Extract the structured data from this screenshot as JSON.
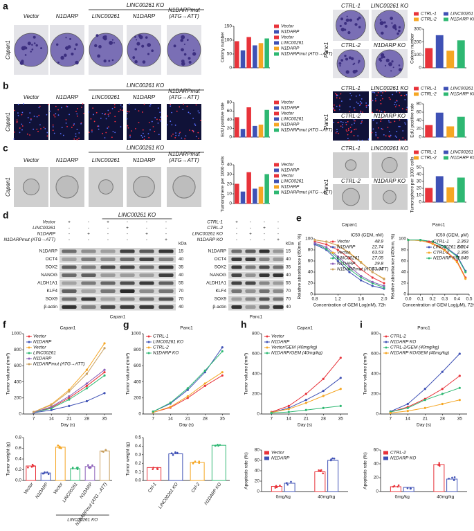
{
  "panel_letters": [
    "a",
    "b",
    "c",
    "d",
    "e",
    "f",
    "g",
    "h",
    "i"
  ],
  "rows": [
    {
      "cell_line": "Capan1",
      "group_label": "LINC00261 KO",
      "labels": [
        [
          "Vector"
        ],
        [
          "N1DARP"
        ],
        [
          "LINC00261"
        ],
        [
          "N1DARP"
        ],
        [
          "N1DARPmut",
          "(ATG→ATT)"
        ]
      ],
      "panc1_cell_line": "Panc1",
      "panc1_labels": [
        "CTRL-1",
        "LINC00261 KO",
        "CTRL-2",
        "N1DARP KO"
      ]
    },
    {
      "cell_line": "Capan1",
      "group_label": "LINC00261 KO",
      "labels": [
        [
          "Vector"
        ],
        [
          "N1DARP"
        ],
        [
          "LINC00261"
        ],
        [
          "N1DARP"
        ],
        [
          "N1DARPmut",
          "(ATG→ATT)"
        ]
      ],
      "panc1_cell_line": "Panc1",
      "panc1_labels": [
        "CTRL-1",
        "LINC00261 KO",
        "CTRL-2",
        "N1DARP KO"
      ]
    },
    {
      "cell_line": "Capan1",
      "group_label": "LINC00261 KO",
      "labels": [
        [
          "Vector"
        ],
        [
          "N1DARP"
        ],
        [
          "LINC00261"
        ],
        [
          "N1DARP"
        ],
        [
          "N1DARPmut",
          "(ATG→ATT)"
        ]
      ],
      "panc1_cell_line": "Panc1",
      "panc1_labels": [
        "CTRL-1",
        "LINC00261 KO",
        "CTRL-2",
        "N1DARP KO"
      ]
    }
  ],
  "western_blot": [
    {
      "cell_line": "Capan1",
      "group_label": "LINC00261 KO",
      "unit": "kDa",
      "conditions": [
        {
          "name": "Vector",
          "signs": [
            "+",
            "-",
            "+",
            "-",
            "-",
            "-"
          ]
        },
        {
          "name": "LINC00261",
          "signs": [
            "-",
            "-",
            "-",
            "+",
            "-",
            "-"
          ]
        },
        {
          "name": "N1DARP",
          "signs": [
            "-",
            "+",
            "-",
            "-",
            "+",
            "-"
          ]
        },
        {
          "name": "N1DARPmut (ATG→ATT)",
          "signs": [
            "-",
            "-",
            "-",
            "-",
            "-",
            "+"
          ]
        }
      ],
      "proteins": [
        "N1DARP",
        "OCT4",
        "SOX2",
        "NANOG",
        "ALDH1A1",
        "KLF4",
        "SOX9",
        "β-actin"
      ],
      "kda": [
        15,
        40,
        35,
        40,
        55,
        70,
        70,
        40
      ]
    },
    {
      "cell_line": "Panc1",
      "unit": "kDa",
      "conditions": [
        {
          "name": "CTRL-1",
          "signs": [
            "+",
            "-",
            "-",
            "-"
          ]
        },
        {
          "name": "CTRL-2",
          "signs": [
            "-",
            "-",
            "+",
            "-"
          ]
        },
        {
          "name": "LINC00261 KO",
          "signs": [
            "-",
            "+",
            "-",
            "-"
          ]
        },
        {
          "name": "N1DARP KO",
          "signs": [
            "-",
            "-",
            "-",
            "+"
          ]
        }
      ],
      "proteins": [
        "N1DARP",
        "OCT4",
        "SOX2",
        "NANOG",
        "ALDH1A1",
        "KLF4",
        "SOX9",
        "β-actin"
      ],
      "kda": [
        15,
        40,
        35,
        40,
        55,
        70,
        70,
        40
      ]
    }
  ],
  "chart_data": [
    {
      "type": "bar",
      "ylabel": "Colony number",
      "categories": [
        "Vector",
        "N1DARP",
        "Vector",
        "LINC00261",
        "N1DARP",
        "N1DARPmut (ATG→ATT)"
      ],
      "values": [
        95,
        62,
        110,
        80,
        88,
        105
      ],
      "colors": [
        "#e8333a",
        "#3f51b5",
        "#e8333a",
        "#3f51b5",
        "#f5a623",
        "#2eb872"
      ],
      "ylim": [
        0,
        150
      ],
      "yticks": [
        0,
        50,
        100,
        150
      ],
      "legend": "right"
    },
    {
      "type": "bar",
      "ylabel": "Colony number",
      "categories": [
        "CTRL-1",
        "LINC00261 KO",
        "CTRL-2",
        "N1DARP KO"
      ],
      "values": [
        150,
        250,
        130,
        210
      ],
      "colors": [
        "#e8333a",
        "#3f51b5",
        "#f5a623",
        "#2eb872"
      ],
      "ylim": [
        0,
        300
      ],
      "yticks": [
        0,
        100,
        200,
        300
      ],
      "legend": "top"
    },
    {
      "type": "bar",
      "ylabel": "EdU positive rate",
      "categories": [
        "Vector",
        "N1DARP",
        "Vector",
        "LINC00261",
        "N1DARP",
        "N1DARPmut (ATG→ATT)"
      ],
      "values": [
        45,
        18,
        68,
        25,
        28,
        62
      ],
      "colors": [
        "#e8333a",
        "#3f51b5",
        "#e8333a",
        "#3f51b5",
        "#f5a623",
        "#2eb872"
      ],
      "ylim": [
        0,
        80
      ],
      "yticks": [
        0,
        20,
        40,
        60,
        80
      ],
      "legend": "right"
    },
    {
      "type": "bar",
      "ylabel": "EdU positive rate",
      "categories": [
        "CTRL-1",
        "LINC00261 KO",
        "CTRL-2",
        "N1DARP KO"
      ],
      "values": [
        28,
        58,
        25,
        48
      ],
      "colors": [
        "#e8333a",
        "#3f51b5",
        "#f5a623",
        "#2eb872"
      ],
      "ylim": [
        0,
        80
      ],
      "yticks": [
        0,
        20,
        40,
        60,
        80
      ],
      "legend": "top"
    },
    {
      "type": "bar",
      "ylabel": "Tumorsphere per 1000 cells",
      "categories": [
        "Vector",
        "N1DARP",
        "Vector",
        "LINC00261",
        "N1DARP",
        "N1DARPmut (ATG→ATT)"
      ],
      "values": [
        20,
        12,
        32,
        15,
        17,
        30
      ],
      "colors": [
        "#e8333a",
        "#3f51b5",
        "#e8333a",
        "#3f51b5",
        "#f5a623",
        "#2eb872"
      ],
      "ylim": [
        0,
        40
      ],
      "yticks": [
        0,
        10,
        20,
        30,
        40
      ],
      "legend": "right"
    },
    {
      "type": "bar",
      "ylabel": "Tumorsphere per 1000 cells",
      "categories": [
        "CTRL-1",
        "LINC00261 KO",
        "CTRL-2",
        "N1DARP KO"
      ],
      "values": [
        20,
        37,
        21,
        35
      ],
      "colors": [
        "#e8333a",
        "#3f51b5",
        "#f5a623",
        "#2eb872"
      ],
      "ylim": [
        0,
        50
      ],
      "yticks": [
        0,
        10,
        20,
        30,
        40,
        50
      ],
      "legend": "top"
    },
    {
      "type": "line",
      "title": "Capan1",
      "ylabel": "Relative absorbance (450nm, %)",
      "xlabel": "Concentration of GEM Log(nM), 72h",
      "legend_title": "IC50 (GEM, nM)",
      "legend": "upper right",
      "x": [
        0.8,
        1.0,
        1.2,
        1.4,
        1.6,
        1.8,
        2.0
      ],
      "xlim": [
        0.8,
        2.0
      ],
      "xticks": [
        0.8,
        1.2,
        1.6,
        {
          "value": 2,
          "label": "2.0"
        }
      ],
      "ylim": [
        0,
        100
      ],
      "yticks": [
        0,
        20,
        40,
        60,
        80,
        100
      ],
      "series": [
        {
          "name": "Vector",
          "ic50": 48.9,
          "color": "#e8333a",
          "values": [
            95,
            90,
            80,
            65,
            45,
            30,
            20
          ]
        },
        {
          "name": "N1DARP",
          "ic50": 22.74,
          "color": "#3f51b5",
          "values": [
            90,
            80,
            60,
            40,
            25,
            15,
            10
          ]
        },
        {
          "name": "Vector",
          "ic50": 63.53,
          "color": "#f5a623",
          "values": [
            98,
            95,
            88,
            75,
            58,
            40,
            28
          ]
        },
        {
          "name": "LINC00261",
          "ic50": 27.05,
          "color": "#2eb872",
          "values": [
            92,
            82,
            65,
            45,
            30,
            20,
            12
          ]
        },
        {
          "name": "N1DARP",
          "ic50": 29.8,
          "color": "#8b5fb8",
          "values": [
            92,
            85,
            68,
            50,
            33,
            22,
            15
          ]
        },
        {
          "name": "N1DARPmut (ATG→ATT)",
          "ic50": 63.04,
          "color": "#c8a060",
          "values": [
            98,
            95,
            88,
            74,
            57,
            40,
            27
          ]
        }
      ]
    },
    {
      "type": "line",
      "title": "Panc1",
      "ylabel": "Relative absorbance (450nm, %)",
      "xlabel": "Concentration of GEM Log(μM), 72h",
      "legend_title": "IC50 (GEM, μM)",
      "legend": "upper right",
      "x": [
        0,
        0.1,
        0.2,
        0.3,
        0.4,
        0.47
      ],
      "xlim": [
        0,
        0.5
      ],
      "xticks": [
        {
          "value": 0,
          "label": "0.0"
        },
        0.1,
        0.2,
        0.3,
        0.4,
        0.5
      ],
      "ylim": [
        0,
        100
      ],
      "yticks": [
        0,
        20,
        40,
        60,
        80,
        100
      ],
      "series": [
        {
          "name": "CTRL-1",
          "ic50": 2.363,
          "color": "#e8333a",
          "values": [
            98,
            97,
            92,
            80,
            60,
            30
          ]
        },
        {
          "name": "LINC00261 KO",
          "ic50": 2.814,
          "color": "#3f51b5",
          "values": [
            98,
            98,
            95,
            86,
            70,
            42
          ]
        },
        {
          "name": "CTRL-2",
          "ic50": 2.366,
          "color": "#f5a623",
          "values": [
            98,
            97,
            91,
            79,
            58,
            28
          ]
        },
        {
          "name": "N1DARP KO",
          "ic50": 2.849,
          "color": "#2eb872",
          "values": [
            98,
            98,
            95,
            85,
            68,
            40
          ]
        }
      ]
    },
    {
      "type": "line",
      "title": "Capan1",
      "ylabel": "Tumor volume (mm³)",
      "xlabel": "Day (s)",
      "legend": "upper left",
      "x": [
        7,
        14,
        21,
        28,
        35
      ],
      "xlim": [
        3,
        38
      ],
      "xticks": [
        7,
        14,
        21,
        28,
        35
      ],
      "ylim": [
        0,
        1000
      ],
      "yticks": [
        0,
        200,
        400,
        600,
        800,
        1000
      ],
      "series": [
        {
          "name": "Vector",
          "color": "#e8333a",
          "values": [
            20,
            80,
            200,
            350,
            520
          ]
        },
        {
          "name": "N1DARP",
          "color": "#3f51b5",
          "values": [
            15,
            50,
            100,
            160,
            260
          ]
        },
        {
          "name": "Vector",
          "color": "#f5a623",
          "values": [
            25,
            120,
            300,
            550,
            880
          ]
        },
        {
          "name": "LINC00261",
          "color": "#2eb872",
          "values": [
            20,
            70,
            180,
            320,
            480
          ]
        },
        {
          "name": "N1DARP",
          "color": "#8b5fb8",
          "values": [
            20,
            90,
            220,
            380,
            550
          ]
        },
        {
          "name": "N1DARPmut (ATG→ATT)",
          "color": "#c8a060",
          "values": [
            25,
            110,
            280,
            500,
            820
          ]
        }
      ]
    },
    {
      "type": "bar",
      "ylabel": "Tumor weight (g)",
      "categories": [
        "Vector",
        "N1DARP",
        "Vector",
        "LINC00261",
        "N1DARP",
        "N1DARPmut (ATG→ATT)"
      ],
      "values": [
        0.27,
        0.14,
        0.62,
        0.22,
        0.26,
        0.55
      ],
      "colors": [
        "#e8333a",
        "#3f51b5",
        "#f5a623",
        "#2eb872",
        "#8b5fb8",
        "#c8a060"
      ],
      "ylim": [
        0,
        0.8
      ],
      "yticks": [
        {
          "value": 0,
          "label": "0.0"
        },
        0.2,
        0.4,
        0.6,
        0.8
      ],
      "group_label": "LINC00261 KO"
    },
    {
      "type": "line",
      "title": "Panc1",
      "ylabel": "Tumor volume (mm³)",
      "xlabel": "Day (s)",
      "legend": "upper left",
      "x": [
        7,
        14,
        21,
        28,
        35
      ],
      "xlim": [
        3,
        38
      ],
      "xticks": [
        7,
        14,
        21,
        28,
        35
      ],
      "ylim": [
        0,
        1000
      ],
      "yticks": [
        0,
        200,
        400,
        600,
        800,
        1000
      ],
      "series": [
        {
          "name": "CTRL-1",
          "color": "#e8333a",
          "values": [
            20,
            80,
            200,
            350,
            480
          ]
        },
        {
          "name": "LINC00261 KO",
          "color": "#3f51b5",
          "values": [
            30,
            130,
            300,
            520,
            830
          ]
        },
        {
          "name": "CTRL-2",
          "color": "#f5a623",
          "values": [
            20,
            90,
            220,
            380,
            520
          ]
        },
        {
          "name": "N1DARP KO",
          "color": "#2eb872",
          "values": [
            30,
            140,
            320,
            540,
            780
          ]
        }
      ]
    },
    {
      "type": "bar",
      "ylabel": "Tumor weight (g)",
      "categories": [
        "Ctrl-1",
        "LINC00261 KO",
        "Ctrl-2",
        "N1DARP KO"
      ],
      "values": [
        0.15,
        0.31,
        0.21,
        0.41
      ],
      "colors": [
        "#e8333a",
        "#3f51b5",
        "#f5a623",
        "#2eb872"
      ],
      "ylim": [
        0,
        0.5
      ],
      "yticks": [
        {
          "value": 0,
          "label": "0.0"
        },
        0.1,
        0.2,
        0.3,
        0.4,
        0.5
      ]
    },
    {
      "type": "line",
      "title": "Capan1",
      "ylabel": "Tumor volume (mm³)",
      "xlabel": "Day (s)",
      "legend": "upper left",
      "x": [
        7,
        14,
        21,
        28,
        35
      ],
      "xlim": [
        3,
        38
      ],
      "xticks": [
        7,
        14,
        21,
        28,
        35
      ],
      "ylim": [
        0,
        800
      ],
      "yticks": [
        0,
        200,
        400,
        600,
        800
      ],
      "series": [
        {
          "name": "Vector",
          "color": "#e8333a",
          "values": [
            20,
            80,
            200,
            350,
            560
          ]
        },
        {
          "name": "N1DARP",
          "color": "#3f51b5",
          "values": [
            15,
            60,
            140,
            230,
            360
          ]
        },
        {
          "name": "Vector/GEM (40mg/kg)",
          "color": "#f5a623",
          "values": [
            15,
            50,
            110,
            180,
            250
          ]
        },
        {
          "name": "N1DARP/GEM (40mg/kg)",
          "color": "#2eb872",
          "values": [
            10,
            20,
            40,
            60,
            80
          ]
        }
      ]
    },
    {
      "type": "bar",
      "ylabel": "Apoptosis rate (%)",
      "categories": [
        "0mg/kg",
        "40mg/kg"
      ],
      "series": [
        {
          "name": "Vector",
          "color": "#e8333a",
          "values": [
            10,
            38
          ]
        },
        {
          "name": "N1DARP",
          "color": "#3f51b5",
          "values": [
            16,
            60
          ]
        }
      ],
      "ylim": [
        0,
        80
      ],
      "yticks": [
        0,
        20,
        40,
        60,
        80
      ],
      "legend": "upper left"
    },
    {
      "type": "line",
      "title": "Panc1",
      "ylabel": "Tumor volume (mm³)",
      "xlabel": "Day (s)",
      "legend": "upper left",
      "x": [
        7,
        14,
        21,
        28,
        35
      ],
      "xlim": [
        3,
        38
      ],
      "xticks": [
        7,
        14,
        21,
        28,
        35
      ],
      "ylim": [
        0,
        800
      ],
      "yticks": [
        0,
        200,
        400,
        600,
        800
      ],
      "series": [
        {
          "name": "CTRL-2",
          "color": "#e8333a",
          "values": [
            20,
            70,
            150,
            250,
            380
          ]
        },
        {
          "name": "N1DARP KO",
          "color": "#3f51b5",
          "values": [
            25,
            100,
            250,
            420,
            600
          ]
        },
        {
          "name": "CTRL-2/GEM (40mg/kg)",
          "color": "#2eb872",
          "values": [
            20,
            60,
            140,
            200,
            260
          ]
        },
        {
          "name": "N1DARP KO/GEM (40mg/kg)",
          "color": "#f5a623",
          "values": [
            10,
            30,
            60,
            100,
            140
          ]
        }
      ]
    },
    {
      "type": "bar",
      "ylabel": "Apoptosis rate (%)",
      "categories": [
        "0mg/kg",
        "40mg/kg"
      ],
      "series": [
        {
          "name": "CTRL-2",
          "color": "#e8333a",
          "values": [
            7,
            39
          ]
        },
        {
          "name": "N1DARP KO",
          "color": "#3f51b5",
          "values": [
            6,
            18
          ]
        }
      ],
      "ylim": [
        0,
        60
      ],
      "yticks": [
        0,
        20,
        40,
        60
      ],
      "legend": "upper left"
    }
  ]
}
